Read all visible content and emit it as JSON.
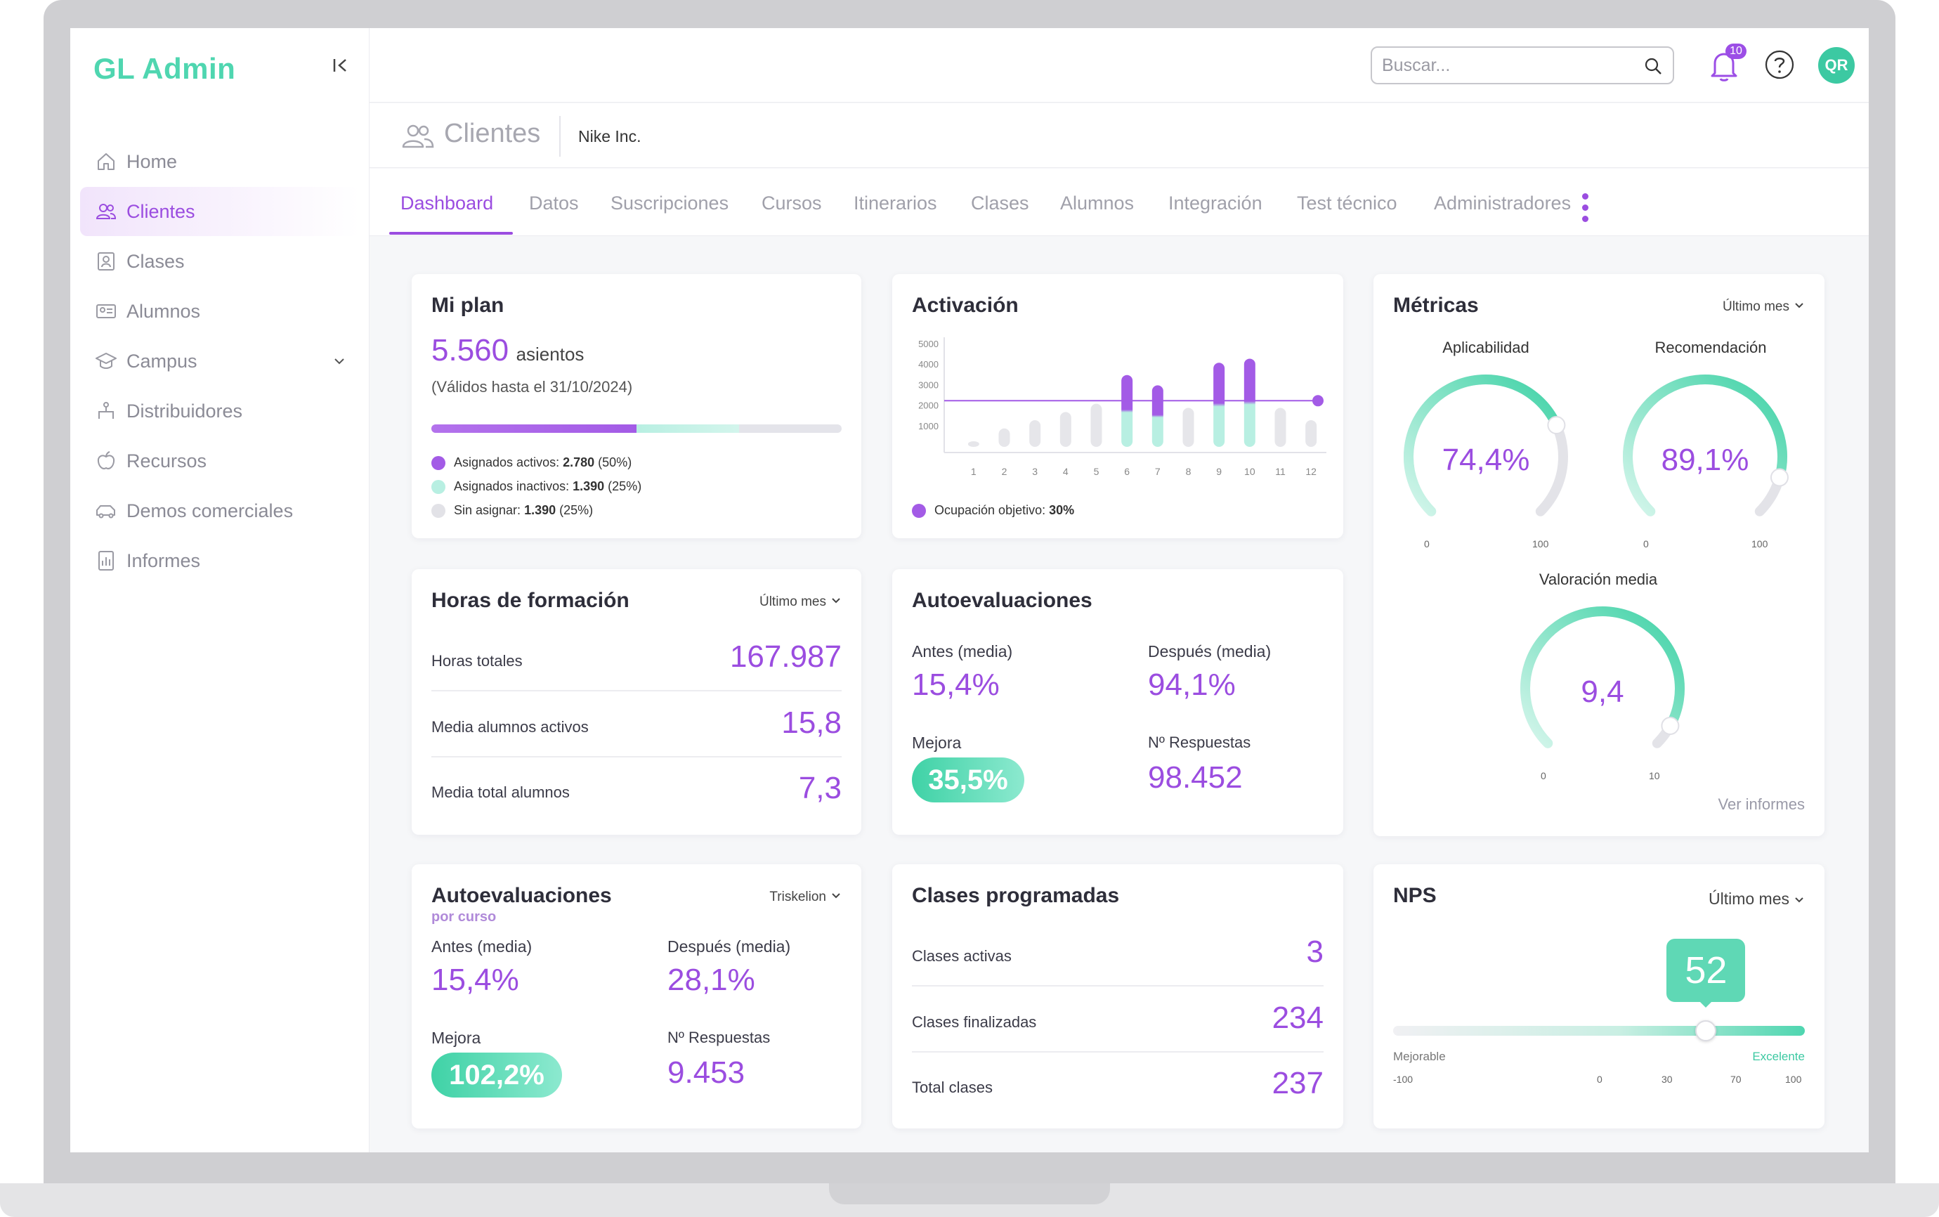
{
  "app": {
    "logo": "GL Admin"
  },
  "sidebar": {
    "items": [
      {
        "label": "Home"
      },
      {
        "label": "Clientes"
      },
      {
        "label": "Clases"
      },
      {
        "label": "Alumnos"
      },
      {
        "label": "Campus"
      },
      {
        "label": "Distribuidores"
      },
      {
        "label": "Recursos"
      },
      {
        "label": "Demos comerciales"
      },
      {
        "label": "Informes"
      }
    ]
  },
  "topbar": {
    "search_placeholder": "Buscar...",
    "notifications": "10",
    "avatar": "QR"
  },
  "header": {
    "title": "Clientes",
    "client": "Nike Inc."
  },
  "tabs": [
    "Dashboard",
    "Datos",
    "Suscripciones",
    "Cursos",
    "Itinerarios",
    "Clases",
    "Alumnos",
    "Integración",
    "Test técnico",
    "Administradores"
  ],
  "plan": {
    "title": "Mi plan",
    "seats": "5.560",
    "seats_unit": "asientos",
    "validity": "(Válidos hasta el 31/10/2024)",
    "bar": {
      "active_pct": 50,
      "inactive_pct": 25,
      "unassigned_pct": 25
    },
    "legend": [
      {
        "label": "Asignados activos:",
        "value": "2.780",
        "pct": "(50%)",
        "color": "#a35be6"
      },
      {
        "label": "Asignados inactivos:",
        "value": "1.390",
        "pct": "(25%)",
        "color": "#b8efe2"
      },
      {
        "label": "Sin asignar:",
        "value": "1.390",
        "pct": "(25%)",
        "color": "#e2e2e7"
      }
    ]
  },
  "activation": {
    "title": "Activación",
    "legend_label": "Ocupación objetivo:",
    "legend_value": "30%"
  },
  "chart_data": {
    "type": "bar",
    "categories": [
      "1",
      "2",
      "3",
      "4",
      "5",
      "6",
      "7",
      "8",
      "9",
      "10",
      "11",
      "12"
    ],
    "values": [
      200,
      900,
      1300,
      1700,
      2100,
      3500,
      3000,
      1900,
      4100,
      4300,
      1900,
      1300
    ],
    "highlight": [
      false,
      false,
      false,
      false,
      false,
      true,
      true,
      false,
      true,
      true,
      false,
      false
    ],
    "yticks": [
      "5000",
      "4000",
      "3000",
      "2000",
      "1000"
    ],
    "ylim": [
      0,
      5000
    ],
    "target_value": 2250,
    "colors": {
      "base": "#e6e6ea",
      "highlight_top": "#a35be6",
      "highlight_bottom": "#b8efe2",
      "target": "#a35be6"
    }
  },
  "metrics": {
    "title": "Métricas",
    "filter": "Último mes",
    "gauges": [
      {
        "label": "Aplicabilidad",
        "value": "74,4%",
        "fraction": 0.744,
        "min": "0",
        "max": "100"
      },
      {
        "label": "Recomendación",
        "value": "89,1%",
        "fraction": 0.891,
        "min": "0",
        "max": "100"
      },
      {
        "label": "Valoración media",
        "value": "9,4",
        "fraction": 0.94,
        "min": "0",
        "max": "10"
      }
    ],
    "link": "Ver informes"
  },
  "hours": {
    "title": "Horas de formación",
    "filter": "Último mes",
    "rows": [
      {
        "label": "Horas totales",
        "value": "167.987"
      },
      {
        "label": "Media alumnos activos",
        "value": "15,8"
      },
      {
        "label": "Media total alumnos",
        "value": "7,3"
      }
    ]
  },
  "selfeval": {
    "title": "Autoevaluaciones",
    "before_label": "Antes (media)",
    "before": "15,4%",
    "after_label": "Después (media)",
    "after": "94,1%",
    "improve_label": "Mejora",
    "improve": "35,5%",
    "responses_label": "Nº Respuestas",
    "responses": "98.452"
  },
  "selfeval_course": {
    "title": "Autoevaluaciones",
    "subtitle": "por curso",
    "filter": "Triskelion",
    "before_label": "Antes (media)",
    "before": "15,4%",
    "after_label": "Después (media)",
    "after": "28,1%",
    "improve_label": "Mejora",
    "improve": "102,2%",
    "responses_label": "Nº Respuestas",
    "responses": "9.453"
  },
  "classes": {
    "title": "Clases programadas",
    "rows": [
      {
        "label": "Clases activas",
        "value": "3"
      },
      {
        "label": "Clases finalizadas",
        "value": "234"
      },
      {
        "label": "Total clases",
        "value": "237"
      }
    ]
  },
  "nps": {
    "title": "NPS",
    "filter": "Último mes",
    "value": "52",
    "fraction": 0.76,
    "low_label": "Mejorable",
    "high_label": "Excelente",
    "ticks": [
      "-100",
      "0",
      "30",
      "70",
      "100"
    ]
  }
}
